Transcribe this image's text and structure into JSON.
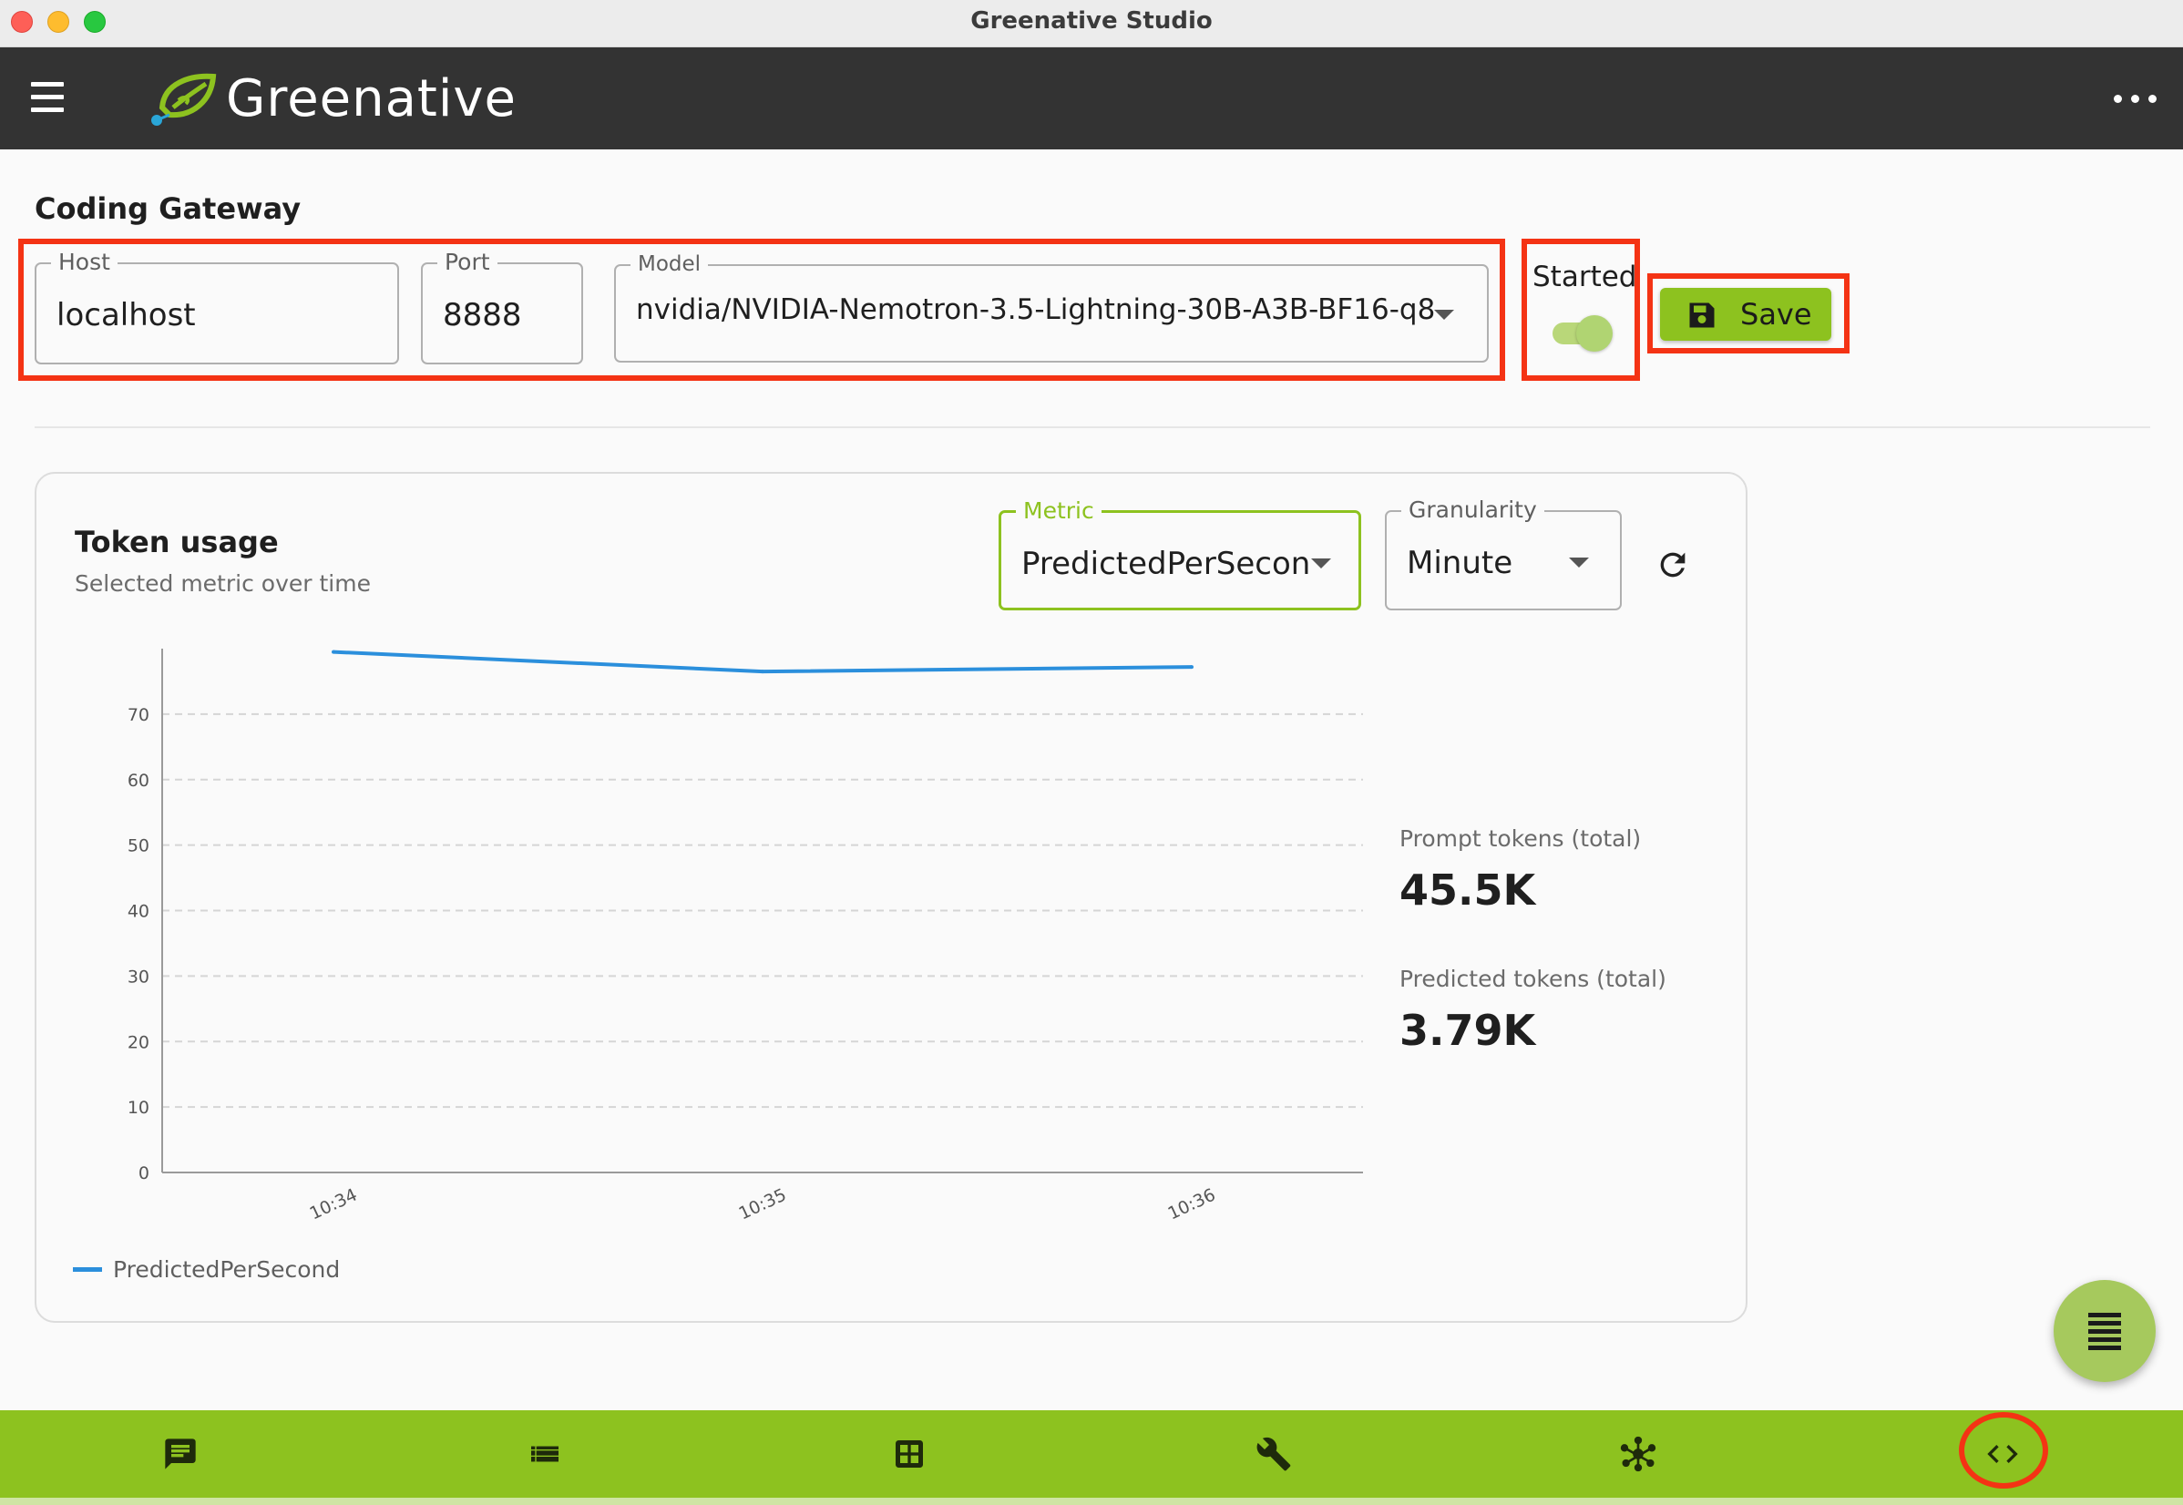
{
  "window": {
    "title": "Greenative Studio"
  },
  "appbar": {
    "brand": "Greenative",
    "menu_icon": "hamburger-menu-icon",
    "more_icon": "more-horizontal-icon"
  },
  "gateway": {
    "title": "Coding Gateway",
    "host": {
      "label": "Host",
      "value": "localhost"
    },
    "port": {
      "label": "Port",
      "value": "8888"
    },
    "model": {
      "label": "Model",
      "value": "nvidia/NVIDIA-Nemotron-3.5-Lightning-30B-A3B-BF16-q8"
    },
    "started": {
      "label": "Started",
      "on": true
    },
    "save_label": "Save"
  },
  "usage": {
    "title": "Token usage",
    "subtitle": "Selected metric over time",
    "metric": {
      "label": "Metric",
      "value": "PredictedPerSecon"
    },
    "granularity": {
      "label": "Granularity",
      "value": "Minute"
    },
    "stats": [
      {
        "label": "Prompt tokens (total)",
        "value": "45.5K"
      },
      {
        "label": "Predicted tokens (total)",
        "value": "3.79K"
      }
    ]
  },
  "chart_data": {
    "type": "line",
    "categories": [
      "10:34",
      "10:35",
      "10:36"
    ],
    "series": [
      {
        "name": "PredictedPerSecond",
        "values": [
          79.5,
          76.5,
          77.2
        ],
        "color": "#2b8fdc"
      }
    ],
    "yticks": [
      0,
      10,
      20,
      30,
      40,
      50,
      60,
      70
    ],
    "ylim": [
      0,
      80
    ],
    "grid": true,
    "legend": "bottom-left"
  },
  "bottom_nav": [
    {
      "name": "chat-icon",
      "active": false
    },
    {
      "name": "list-icon",
      "active": false
    },
    {
      "name": "grid-icon",
      "active": false
    },
    {
      "name": "wrench-icon",
      "active": false
    },
    {
      "name": "network-icon",
      "active": false
    },
    {
      "name": "code-icon",
      "active": true
    }
  ],
  "colors": {
    "accent": "#8dc21f",
    "appbar": "#333333",
    "highlight": "#f43314",
    "line": "#2b8fdc"
  }
}
